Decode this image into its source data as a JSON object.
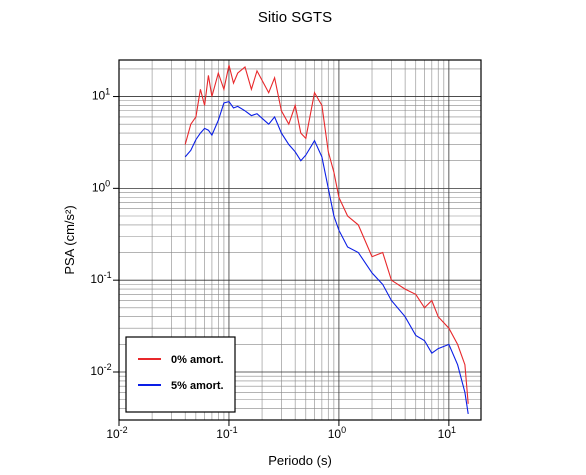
{
  "chart_data": {
    "type": "line",
    "title": "Sitio SGTS",
    "x_label": "Periodo (s)",
    "y_label": "PSA (cm/s²)",
    "x_scale": "log",
    "y_scale": "log",
    "grid": true,
    "legend": "lower left",
    "xlim": [
      0.01,
      19.6
    ],
    "ylim": [
      0.003,
      25
    ],
    "xticks": [
      {
        "value": 0.01,
        "label": "10",
        "exponent": "-2"
      },
      {
        "value": 0.1,
        "label": "10",
        "exponent": "-1"
      },
      {
        "value": 1,
        "label": "10",
        "exponent": "0"
      },
      {
        "value": 10,
        "label": "10",
        "exponent": "1"
      }
    ],
    "yticks": [
      {
        "value": 0.01,
        "label": "10",
        "exponent": "-2"
      },
      {
        "value": 0.1,
        "label": "10",
        "exponent": "-1"
      },
      {
        "value": 1,
        "label": "10",
        "exponent": "0"
      },
      {
        "value": 10,
        "label": "10",
        "exponent": "1"
      }
    ],
    "xminorticks": [
      0.02,
      0.03,
      0.04,
      0.05,
      0.06,
      0.07,
      0.08,
      0.09,
      0.2,
      0.3,
      0.4,
      0.5,
      0.6,
      0.7,
      0.8,
      0.9,
      2,
      3,
      4,
      5,
      6,
      7,
      8,
      9
    ],
    "yminorticks": [
      0.004,
      0.005,
      0.006,
      0.007,
      0.008,
      0.009,
      0.02,
      0.03,
      0.04,
      0.05,
      0.06,
      0.07,
      0.08,
      0.09,
      0.2,
      0.3,
      0.4,
      0.5,
      0.6,
      0.7,
      0.8,
      0.9,
      2,
      3,
      4,
      5,
      6,
      7,
      8,
      9,
      20
    ],
    "x": [
      0.04,
      0.045,
      0.05,
      0.055,
      0.06,
      0.065,
      0.07,
      0.08,
      0.09,
      0.1,
      0.11,
      0.12,
      0.14,
      0.16,
      0.18,
      0.2,
      0.23,
      0.26,
      0.3,
      0.35,
      0.4,
      0.45,
      0.5,
      0.6,
      0.7,
      0.8,
      0.9,
      1.0,
      1.2,
      1.5,
      2,
      2.5,
      3,
      4,
      5,
      6,
      7,
      8,
      10,
      12,
      14,
      15
    ],
    "series": [
      {
        "name": "0% amort.",
        "color": "#e8282b",
        "values": [
          3.0,
          5.0,
          6.0,
          12,
          8,
          17,
          10,
          18,
          12,
          22,
          14,
          18,
          21,
          12,
          19,
          15,
          11,
          16,
          7,
          5,
          8,
          4,
          3.5,
          11,
          8,
          2.5,
          1.5,
          0.8,
          0.5,
          0.4,
          0.18,
          0.2,
          0.1,
          0.08,
          0.07,
          0.05,
          0.06,
          0.04,
          0.03,
          0.02,
          0.012,
          0.0045
        ]
      },
      {
        "name": "5% amort.",
        "color": "#0a1ee6",
        "values": [
          2.2,
          2.6,
          3.4,
          4.0,
          4.5,
          4.3,
          3.8,
          5.5,
          8.5,
          8.8,
          7.5,
          7.8,
          7.0,
          6.2,
          6.5,
          5.8,
          5.0,
          6.0,
          4.0,
          3.0,
          2.5,
          2.0,
          2.3,
          3.3,
          2.2,
          1.0,
          0.5,
          0.35,
          0.23,
          0.2,
          0.12,
          0.09,
          0.06,
          0.04,
          0.025,
          0.022,
          0.016,
          0.018,
          0.02,
          0.012,
          0.006,
          0.0035
        ]
      }
    ]
  }
}
